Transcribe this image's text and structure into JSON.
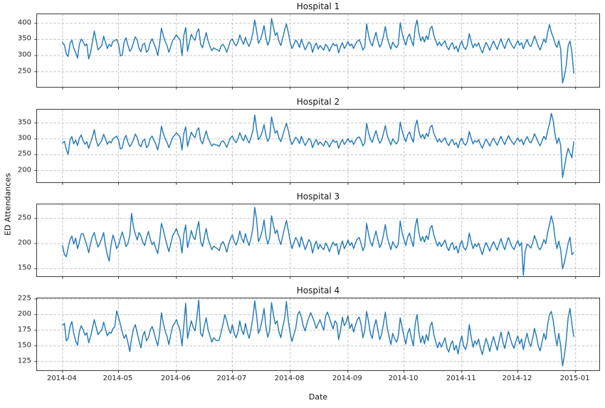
{
  "figure": {
    "xlabel": "Date",
    "ylabel": "ED Attendances",
    "colors": {
      "line": "#1f77b4",
      "grid": "#c4c4c4",
      "spine": "#3c3c3c",
      "tick": "#333333",
      "background": "#ffffff"
    }
  },
  "chart_data": {
    "type": "line",
    "layout": "4 vertically stacked subplots sharing one x axis, grid on (dashed), single blue series per subplot",
    "xlabel": "Date",
    "ylabel": "ED Attendances",
    "grid": true,
    "line_color": "#1f77b4",
    "x_axis": {
      "unit": "daily index, day 0 = first x tick (2014-04)",
      "tick_labels": [
        "2014-04",
        "2014-05",
        "2014-06",
        "2014-07",
        "2014-08",
        "2014-09",
        "2014-10",
        "2014-11",
        "2014-12",
        "2015-01"
      ],
      "tick_day_index": [
        0,
        30,
        61,
        91,
        122,
        153,
        183,
        214,
        244,
        275
      ],
      "lim_day_index": [
        -13.7,
        287.7
      ]
    },
    "subplots": [
      {
        "title": "Hospital 1",
        "yticks": [
          250,
          300,
          350,
          400
        ],
        "ylim": [
          203,
          428
        ],
        "values": [
          341,
          332,
          305,
          297,
          338,
          348,
          323,
          310,
          292,
          335,
          351,
          344,
          330,
          336,
          290,
          309,
          342,
          376,
          347,
          318,
          324,
          331,
          360,
          341,
          322,
          335,
          328,
          344,
          347,
          350,
          336,
          299,
          301,
          342,
          355,
          333,
          313,
          321,
          339,
          358,
          348,
          322,
          312,
          334,
          338,
          310,
          317,
          341,
          352,
          337,
          322,
          300,
          335,
          385,
          362,
          343,
          331,
          310,
          329,
          347,
          354,
          364,
          356,
          349,
          300,
          362,
          387,
          313,
          342,
          366,
          354,
          347,
          372,
          383,
          335,
          324,
          348,
          371,
          345,
          329,
          315,
          324,
          320,
          318,
          313,
          330,
          335,
          325,
          310,
          328,
          346,
          352,
          338,
          330,
          341,
          364,
          348,
          335,
          356,
          339,
          328,
          345,
          371,
          410,
          377,
          338,
          349,
          367,
          393,
          355,
          332,
          348,
          415,
          389,
          362,
          371,
          344,
          331,
          354,
          378,
          398,
          371,
          340,
          322,
          335,
          348,
          340,
          325,
          351,
          334,
          318,
          330,
          342,
          336,
          310,
          329,
          339,
          320,
          331,
          324,
          317,
          335,
          328,
          313,
          326,
          338,
          330,
          334,
          308,
          328,
          340,
          322,
          331,
          343,
          330,
          336,
          322,
          335,
          345,
          349,
          335,
          317,
          327,
          398,
          363,
          341,
          330,
          352,
          372,
          345,
          326,
          337,
          360,
          390,
          355,
          336,
          320,
          342,
          331,
          324,
          336,
          402,
          370,
          348,
          332,
          356,
          367,
          346,
          330,
          387,
          410,
          370,
          345,
          358,
          342,
          361,
          350,
          383,
          391,
          362,
          347,
          331,
          342,
          330,
          338,
          346,
          327,
          318,
          333,
          340,
          320,
          329,
          311,
          333,
          345,
          326,
          319,
          333,
          368,
          344,
          324,
          337,
          329,
          340,
          322,
          308,
          326,
          341,
          330,
          316,
          333,
          345,
          331,
          319,
          337,
          352,
          334,
          322,
          339,
          353,
          341,
          330,
          322,
          335,
          346,
          332,
          340,
          321,
          337,
          350,
          334,
          328,
          342,
          361,
          345,
          329,
          317,
          334,
          351,
          340,
          371,
          396,
          372,
          356,
          337,
          325,
          346,
          320,
          215,
          238,
          270,
          330,
          345,
          310,
          246
        ]
      },
      {
        "title": "Hospital 2",
        "yticks": [
          200,
          250,
          300,
          350
        ],
        "ylim": [
          163,
          392
        ],
        "values": [
          287,
          292,
          266,
          251,
          298,
          307,
          284,
          296,
          279,
          302,
          312,
          295,
          283,
          291,
          270,
          288,
          305,
          329,
          296,
          277,
          285,
          295,
          314,
          300,
          283,
          292,
          287,
          300,
          304,
          309,
          296,
          268,
          272,
          299,
          311,
          290,
          276,
          284,
          297,
          315,
          304,
          282,
          275,
          293,
          299,
          272,
          280,
          301,
          309,
          295,
          283,
          265,
          294,
          340,
          317,
          300,
          289,
          272,
          288,
          304,
          311,
          319,
          312,
          306,
          265,
          317,
          338,
          276,
          299,
          321,
          310,
          304,
          326,
          335,
          295,
          284,
          305,
          325,
          302,
          289,
          277,
          284,
          281,
          280,
          276,
          290,
          294,
          286,
          273,
          288,
          303,
          309,
          296,
          288,
          300,
          319,
          305,
          294,
          312,
          298,
          287,
          303,
          325,
          375,
          331,
          297,
          306,
          322,
          345,
          311,
          292,
          305,
          369,
          341,
          318,
          326,
          302,
          291,
          311,
          331,
          349,
          326,
          298,
          282,
          294,
          305,
          298,
          285,
          308,
          293,
          279,
          289,
          301,
          295,
          272,
          288,
          298,
          281,
          290,
          284,
          278,
          294,
          287,
          274,
          286,
          297,
          289,
          293,
          270,
          287,
          298,
          282,
          290,
          301,
          289,
          295,
          282,
          294,
          303,
          306,
          294,
          278,
          287,
          349,
          319,
          299,
          289,
          309,
          326,
          303,
          286,
          295,
          316,
          342,
          311,
          295,
          281,
          300,
          290,
          284,
          295,
          353,
          325,
          305,
          291,
          312,
          322,
          303,
          289,
          339,
          359,
          324,
          303,
          314,
          300,
          317,
          307,
          336,
          343,
          318,
          304,
          290,
          300,
          289,
          296,
          303,
          287,
          279,
          292,
          298,
          281,
          288,
          272,
          292,
          302,
          286,
          280,
          292,
          323,
          302,
          284,
          295,
          289,
          298,
          282,
          270,
          286,
          299,
          289,
          277,
          292,
          302,
          290,
          280,
          295,
          308,
          293,
          282,
          297,
          310,
          299,
          289,
          282,
          294,
          303,
          291,
          298,
          281,
          295,
          307,
          293,
          287,
          300,
          316,
          302,
          288,
          278,
          293,
          308,
          298,
          325,
          347,
          380,
          356,
          312,
          285,
          303,
          280,
          178,
          210,
          245,
          270,
          255,
          240,
          291
        ]
      },
      {
        "title": "Hospital 3",
        "yticks": [
          150,
          200,
          250
        ],
        "ylim": [
          135,
          278
        ],
        "values": [
          196,
          178,
          174,
          192,
          208,
          215,
          199,
          211,
          190,
          203,
          219,
          220,
          208,
          196,
          182,
          200,
          214,
          222,
          206,
          193,
          201,
          210,
          222,
          196,
          178,
          165,
          198,
          217,
          205,
          190,
          197,
          211,
          223,
          210,
          194,
          200,
          215,
          260,
          233,
          219,
          207,
          222,
          215,
          203,
          196,
          212,
          224,
          209,
          198,
          203,
          190,
          180,
          205,
          240,
          228,
          211,
          197,
          184,
          200,
          216,
          222,
          230,
          218,
          209,
          181,
          219,
          237,
          192,
          207,
          226,
          213,
          208,
          228,
          244,
          204,
          194,
          212,
          230,
          209,
          198,
          188,
          195,
          192,
          190,
          186,
          199,
          204,
          196,
          183,
          198,
          210,
          217,
          204,
          197,
          207,
          225,
          211,
          202,
          220,
          206,
          196,
          210,
          231,
          272,
          248,
          204,
          212,
          226,
          247,
          215,
          199,
          211,
          255,
          237,
          220,
          227,
          208,
          198,
          215,
          231,
          246,
          226,
          205,
          190,
          202,
          212,
          205,
          193,
          214,
          201,
          188,
          197,
          208,
          202,
          181,
          196,
          205,
          189,
          198,
          192,
          188,
          201,
          195,
          184,
          194,
          203,
          196,
          200,
          178,
          194,
          205,
          190,
          197,
          207,
          196,
          202,
          190,
          201,
          209,
          212,
          200,
          186,
          195,
          240,
          219,
          203,
          195,
          211,
          225,
          207,
          192,
          200,
          217,
          238,
          213,
          200,
          188,
          204,
          196,
          191,
          200,
          245,
          222,
          208,
          196,
          213,
          221,
          206,
          194,
          233,
          250,
          222,
          205,
          214,
          203,
          216,
          208,
          230,
          236,
          217,
          206,
          195,
          203,
          194,
          200,
          207,
          193,
          186,
          197,
          202,
          188,
          195,
          181,
          197,
          206,
          192,
          187,
          197,
          221,
          204,
          190,
          199,
          194,
          201,
          189,
          178,
          192,
          202,
          194,
          185,
          196,
          204,
          195,
          187,
          199,
          210,
          197,
          188,
          201,
          212,
          202,
          193,
          188,
          198,
          206,
          195,
          202,
          137,
          185,
          199,
          196,
          191,
          202,
          216,
          205,
          192,
          188,
          196,
          208,
          200,
          222,
          238,
          255,
          240,
          210,
          190,
          205,
          188,
          150,
          163,
          181,
          200,
          213,
          178,
          182
        ]
      },
      {
        "title": "Hospital 4",
        "yticks": [
          125,
          150,
          175,
          200,
          225
        ],
        "ylim": [
          111,
          226
        ],
        "values": [
          183,
          186,
          158,
          162,
          181,
          189,
          170,
          158,
          151,
          173,
          182,
          176,
          167,
          171,
          155,
          165,
          178,
          192,
          180,
          168,
          172,
          175,
          188,
          177,
          166,
          172,
          170,
          178,
          180,
          206,
          196,
          184,
          172,
          162,
          168,
          156,
          141,
          162,
          177,
          184,
          170,
          158,
          147,
          166,
          173,
          158,
          163,
          175,
          181,
          172,
          160,
          150,
          170,
          203,
          186,
          174,
          165,
          152,
          168,
          181,
          186,
          192,
          183,
          175,
          150,
          183,
          218,
          162,
          176,
          190,
          180,
          174,
          195,
          223,
          170,
          165,
          182,
          195,
          176,
          166,
          156,
          163,
          160,
          158,
          160,
          172,
          185,
          200,
          190,
          178,
          170,
          184,
          170,
          163,
          172,
          190,
          176,
          168,
          186,
          172,
          162,
          176,
          195,
          222,
          198,
          170,
          178,
          192,
          210,
          180,
          164,
          175,
          219,
          200,
          185,
          190,
          172,
          163,
          180,
          193,
          221,
          190,
          170,
          157,
          168,
          178,
          200,
          205,
          196,
          182,
          174,
          186,
          195,
          203,
          196,
          188,
          178,
          185,
          192,
          183,
          175,
          198,
          204,
          195,
          186,
          177,
          190,
          186,
          160,
          175,
          196,
          182,
          188,
          198,
          178,
          185,
          172,
          183,
          192,
          196,
          184,
          163,
          174,
          205,
          189,
          170,
          162,
          180,
          192,
          176,
          160,
          168,
          185,
          204,
          179,
          165,
          152,
          170,
          161,
          156,
          166,
          195,
          180,
          165,
          153,
          170,
          178,
          162,
          150,
          185,
          200,
          172,
          155,
          166,
          153,
          168,
          158,
          181,
          188,
          168,
          157,
          147,
          156,
          148,
          155,
          163,
          147,
          140,
          152,
          158,
          143,
          151,
          137,
          155,
          166,
          150,
          144,
          156,
          184,
          165,
          148,
          158,
          152,
          161,
          146,
          136,
          150,
          162,
          153,
          141,
          155,
          165,
          153,
          143,
          158,
          172,
          156,
          146,
          160,
          173,
          162,
          152,
          146,
          157,
          166,
          153,
          161,
          144,
          158,
          170,
          156,
          149,
          162,
          178,
          165,
          150,
          142,
          156,
          170,
          160,
          183,
          200,
          205,
          190,
          168,
          150,
          170,
          150,
          118,
          135,
          160,
          195,
          210,
          185,
          165
        ]
      }
    ]
  }
}
